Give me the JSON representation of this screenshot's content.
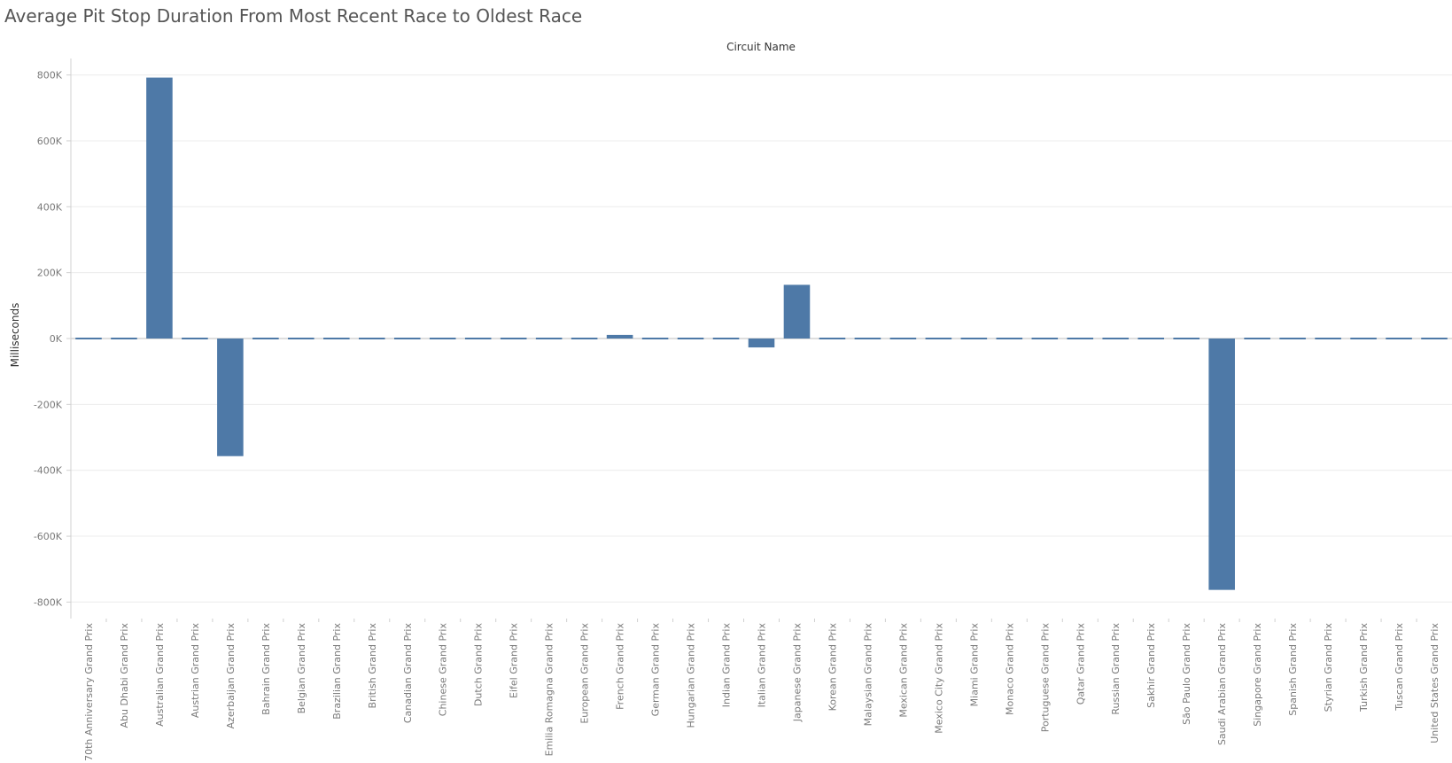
{
  "title": "Average Pit Stop Duration From Most Recent Race to Oldest Race",
  "colors": {
    "bar": "#4e79a7",
    "grid": "#ececec",
    "zero": "#bdbdbd",
    "axis": "#d0d0d0"
  },
  "chart_data": {
    "type": "bar",
    "title": "Average Pit Stop Duration From Most Recent Race to Oldest Race",
    "column_header": "Circuit Name",
    "xlabel": "",
    "ylabel": "Milliseconds",
    "ylim": [
      -850000,
      850000
    ],
    "yticks": [
      800000,
      600000,
      400000,
      200000,
      0,
      -200000,
      -400000,
      -600000,
      -800000
    ],
    "ytick_labels": [
      "800K",
      "600K",
      "400K",
      "200K",
      "0K",
      "-200K",
      "-400K",
      "-600K",
      "-800K"
    ],
    "grid": true,
    "categories": [
      "70th Anniversary Grand Prix",
      "Abu Dhabi Grand Prix",
      "Australian Grand Prix",
      "Austrian Grand Prix",
      "Azerbaijan Grand Prix",
      "Bahrain Grand Prix",
      "Belgian Grand Prix",
      "Brazilian Grand Prix",
      "British Grand Prix",
      "Canadian Grand Prix",
      "Chinese Grand Prix",
      "Dutch Grand Prix",
      "Eifel Grand Prix",
      "Emilia Romagna Grand Prix",
      "European Grand Prix",
      "French Grand Prix",
      "German Grand Prix",
      "Hungarian Grand Prix",
      "Indian Grand Prix",
      "Italian Grand Prix",
      "Japanese Grand Prix",
      "Korean Grand Prix",
      "Malaysian Grand Prix",
      "Mexican Grand Prix",
      "Mexico City Grand Prix",
      "Miami Grand Prix",
      "Monaco Grand Prix",
      "Portuguese Grand Prix",
      "Qatar Grand Prix",
      "Russian Grand Prix",
      "Sakhir Grand Prix",
      "São Paulo Grand Prix",
      "Saudi Arabian Grand Prix",
      "Singapore Grand Prix",
      "Spanish Grand Prix",
      "Styrian Grand Prix",
      "Turkish Grand Prix",
      "Tuscan Grand Prix",
      "United States Grand Prix"
    ],
    "values": [
      1000,
      1500,
      792000,
      1000,
      -357000,
      3500,
      1500,
      3000,
      3000,
      1500,
      3500,
      2000,
      1500,
      1500,
      1500,
      11000,
      1500,
      1500,
      1000,
      -27000,
      163000,
      3500,
      1000,
      1500,
      1000,
      3000,
      1000,
      -5000,
      1500,
      1500,
      1500,
      1500,
      -763000,
      1500,
      1500,
      1500,
      1500,
      1500,
      3000
    ]
  }
}
